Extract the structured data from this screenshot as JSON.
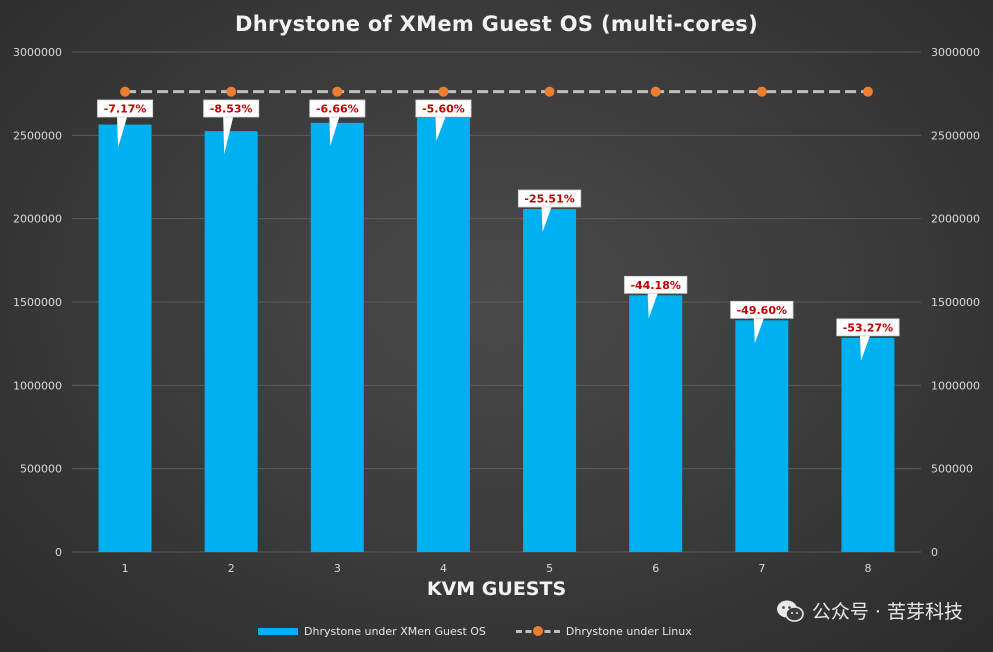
{
  "chart_data": {
    "type": "bar",
    "title": "Dhrystone of XMem Guest OS (multi-cores)",
    "xlabel": "KVM GUESTS",
    "categories": [
      "1",
      "2",
      "3",
      "4",
      "5",
      "6",
      "7",
      "8"
    ],
    "series": [
      {
        "name": "Dhrystone under XMen Guest OS",
        "type": "bar",
        "color": "#00b0f0",
        "values": [
          2565000,
          2525000,
          2575000,
          2605000,
          2058000,
          1540000,
          1390000,
          1285000
        ],
        "labels": [
          "-7.17%",
          "-8.53%",
          "-6.66%",
          "-5.60%",
          "-25.51%",
          "-44.18%",
          "-49.60%",
          "-53.27%"
        ]
      },
      {
        "name": "Dhrystone under Linux",
        "type": "line",
        "color": "#ed7d31",
        "line_color": "#bfbfbf",
        "values": [
          2762000,
          2762000,
          2762000,
          2762000,
          2762000,
          2762000,
          2762000,
          2762000
        ]
      }
    ],
    "ylim": [
      0,
      3000000
    ],
    "y_ticks": [
      "0",
      "500000",
      "1000000",
      "1500000",
      "2000000",
      "2500000",
      "3000000"
    ],
    "secondary_y_ticks": [
      "0",
      "500000",
      "1000000",
      "1500000",
      "2000000",
      "2500000",
      "3000000"
    ],
    "grid": true,
    "legend_position": "bottom"
  },
  "watermark": {
    "text": "公众号 · 苦芽科技",
    "icon": "wechat-icon"
  }
}
